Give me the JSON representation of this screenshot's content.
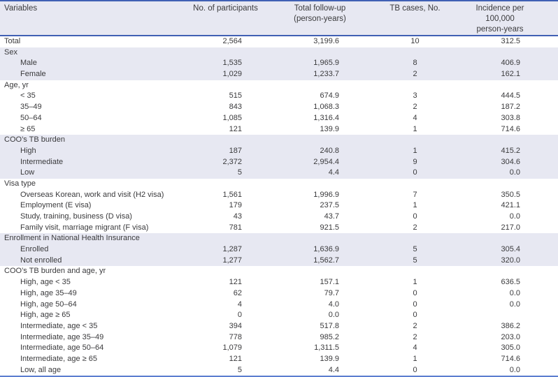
{
  "table": {
    "colors": {
      "stripe_bg": "#e7e8f2",
      "border_top": "#4060b4",
      "border_bottom": "#5c7ecf",
      "text": "#3a3a3c"
    },
    "columns": [
      {
        "label": "Variables"
      },
      {
        "label": "No. of participants"
      },
      {
        "label": "Total follow-up",
        "label2": "(person-years)"
      },
      {
        "label": "TB cases, No."
      },
      {
        "label": "Incidence per 100,000",
        "label2": "person-years"
      }
    ],
    "sections": [
      {
        "shaded": false,
        "header": null,
        "rows": [
          {
            "label": "Total",
            "indent": false,
            "participants": "2,564",
            "followup": "3,199.6",
            "cases": "10",
            "incidence": "312.5"
          }
        ]
      },
      {
        "shaded": true,
        "header": "Sex",
        "rows": [
          {
            "label": "Male",
            "indent": true,
            "participants": "1,535",
            "followup": "1,965.9",
            "cases": "8",
            "incidence": "406.9"
          },
          {
            "label": "Female",
            "indent": true,
            "participants": "1,029",
            "followup": "1,233.7",
            "cases": "2",
            "incidence": "162.1"
          }
        ]
      },
      {
        "shaded": false,
        "header": "Age, yr",
        "rows": [
          {
            "label": "< 35",
            "indent": true,
            "participants": "515",
            "followup": "674.9",
            "cases": "3",
            "incidence": "444.5"
          },
          {
            "label": "35–49",
            "indent": true,
            "participants": "843",
            "followup": "1,068.3",
            "cases": "2",
            "incidence": "187.2"
          },
          {
            "label": "50–64",
            "indent": true,
            "participants": "1,085",
            "followup": "1,316.4",
            "cases": "4",
            "incidence": "303.8"
          },
          {
            "label": "≥ 65",
            "indent": true,
            "participants": "121",
            "followup": "139.9",
            "cases": "1",
            "incidence": "714.6"
          }
        ]
      },
      {
        "shaded": true,
        "header": "COO’s TB burden",
        "rows": [
          {
            "label": "High",
            "indent": true,
            "participants": "187",
            "followup": "240.8",
            "cases": "1",
            "incidence": "415.2"
          },
          {
            "label": "Intermediate",
            "indent": true,
            "participants": "2,372",
            "followup": "2,954.4",
            "cases": "9",
            "incidence": "304.6"
          },
          {
            "label": "Low",
            "indent": true,
            "participants": "5",
            "followup": "4.4",
            "cases": "0",
            "incidence": "0.0"
          }
        ]
      },
      {
        "shaded": false,
        "header": "Visa type",
        "rows": [
          {
            "label": "Overseas Korean, work and visit (H2 visa)",
            "indent": true,
            "participants": "1,561",
            "followup": "1,996.9",
            "cases": "7",
            "incidence": "350.5"
          },
          {
            "label": "Employment (E visa)",
            "indent": true,
            "participants": "179",
            "followup": "237.5",
            "cases": "1",
            "incidence": "421.1"
          },
          {
            "label": "Study, training, business (D visa)",
            "indent": true,
            "participants": "43",
            "followup": "43.7",
            "cases": "0",
            "incidence": "0.0"
          },
          {
            "label": "Family visit, marriage migrant (F visa)",
            "indent": true,
            "participants": "781",
            "followup": "921.5",
            "cases": "2",
            "incidence": "217.0"
          }
        ]
      },
      {
        "shaded": true,
        "header": "Enrollment in National Health Insurance",
        "rows": [
          {
            "label": "Enrolled",
            "indent": true,
            "participants": "1,287",
            "followup": "1,636.9",
            "cases": "5",
            "incidence": "305.4"
          },
          {
            "label": "Not enrolled",
            "indent": true,
            "participants": "1,277",
            "followup": "1,562.7",
            "cases": "5",
            "incidence": "320.0"
          }
        ]
      },
      {
        "shaded": false,
        "header": "COO’s TB burden and age, yr",
        "rows": [
          {
            "label": "High, age < 35",
            "indent": true,
            "participants": "121",
            "followup": "157.1",
            "cases": "1",
            "incidence": "636.5"
          },
          {
            "label": "High, age 35–49",
            "indent": true,
            "participants": "62",
            "followup": "79.7",
            "cases": "0",
            "incidence": "0.0"
          },
          {
            "label": "High, age 50–64",
            "indent": true,
            "participants": "4",
            "followup": "4.0",
            "cases": "0",
            "incidence": "0.0"
          },
          {
            "label": "High, age ≥ 65",
            "indent": true,
            "participants": "0",
            "followup": "0.0",
            "cases": "0",
            "incidence": ""
          },
          {
            "label": "Intermediate, age < 35",
            "indent": true,
            "participants": "394",
            "followup": "517.8",
            "cases": "2",
            "incidence": "386.2"
          },
          {
            "label": "Intermediate, age 35–49",
            "indent": true,
            "participants": "778",
            "followup": "985.2",
            "cases": "2",
            "incidence": "203.0"
          },
          {
            "label": "Intermediate, age 50–64",
            "indent": true,
            "participants": "1,079",
            "followup": "1,311.5",
            "cases": "4",
            "incidence": "305.0"
          },
          {
            "label": "Intermediate, age ≥ 65",
            "indent": true,
            "participants": "121",
            "followup": "139.9",
            "cases": "1",
            "incidence": "714.6"
          },
          {
            "label": "Low, all age",
            "indent": true,
            "participants": "5",
            "followup": "4.4",
            "cases": "0",
            "incidence": "0.0"
          }
        ]
      }
    ]
  }
}
